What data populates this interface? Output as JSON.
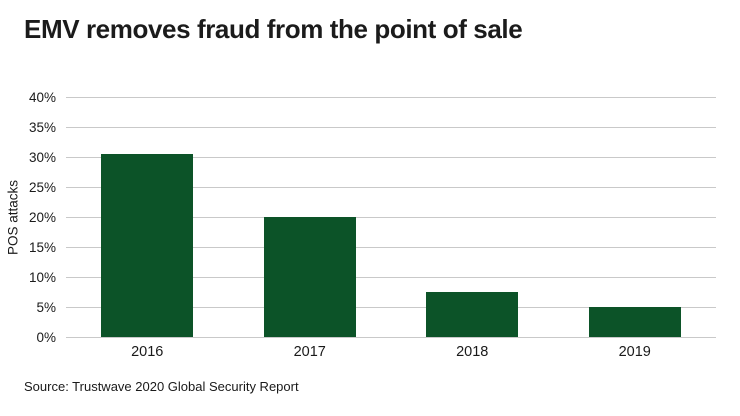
{
  "title": "EMV removes fraud from the point of sale",
  "source": "Source: Trustwave 2020 Global Security Report",
  "colors": {
    "bar": "#0c5328",
    "grid": "#c9c9c9",
    "text": "#1a1a1a",
    "background": "#ffffff"
  },
  "chart_data": {
    "type": "bar",
    "title": "EMV removes fraud from the point of sale",
    "categories": [
      "2016",
      "2017",
      "2018",
      "2019"
    ],
    "values": [
      30.5,
      20,
      7.5,
      5
    ],
    "xlabel": "",
    "ylabel": "POS attacks",
    "ylim": [
      0,
      40
    ],
    "ytick_step": 5,
    "ytick_suffix": "%",
    "grid": true,
    "legend_position": "none",
    "bar_color": "#0c5328",
    "source": "Source: Trustwave 2020 Global Security Report"
  }
}
